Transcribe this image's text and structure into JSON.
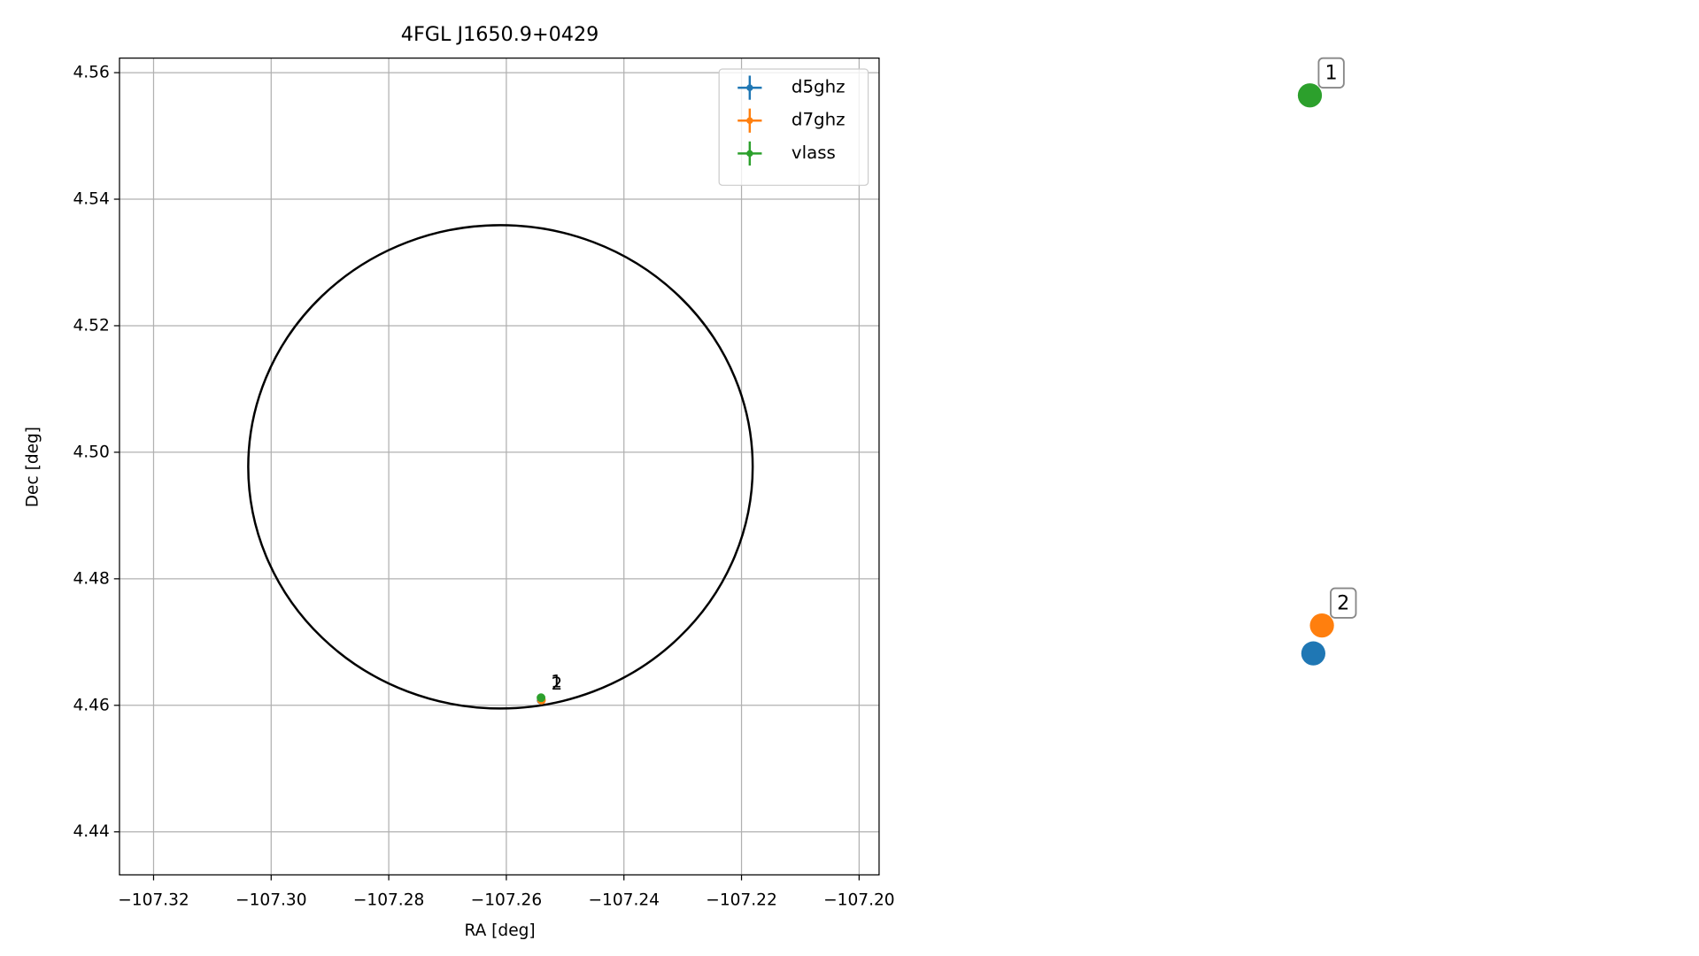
{
  "chart_data": {
    "type": "scatter",
    "title": "4FGL J1650.9+0429",
    "xlabel": "RA [deg]",
    "ylabel": "Dec [deg]",
    "xlim": [
      -107.3258,
      -107.1966
    ],
    "ylim": [
      4.4332,
      4.5623
    ],
    "xticks": [
      {
        "value": -107.32,
        "label": "−107.32"
      },
      {
        "value": -107.3,
        "label": "−107.30"
      },
      {
        "value": -107.28,
        "label": "−107.28"
      },
      {
        "value": -107.26,
        "label": "−107.26"
      },
      {
        "value": -107.24,
        "label": "−107.24"
      },
      {
        "value": -107.22,
        "label": "−107.22"
      },
      {
        "value": -107.2,
        "label": "−107.20"
      }
    ],
    "yticks": [
      4.44,
      4.46,
      4.48,
      {
        "value": 4.5,
        "label": "4.50"
      },
      4.52,
      4.54,
      4.56
    ],
    "grid": true,
    "legend": "upper right",
    "ellipse": {
      "center": [
        -107.261,
        4.4977
      ],
      "rx": 0.0429,
      "ry": 0.0382,
      "color": "#000000"
    },
    "series": [
      {
        "name": "d5ghz",
        "color": "#1f77b4",
        "x": [
          -107.25408
        ],
        "values": [
          4.4608
        ]
      },
      {
        "name": "d7ghz",
        "color": "#ff7f0e",
        "x": [
          -107.25403
        ],
        "values": [
          4.46082
        ],
        "label": "2"
      },
      {
        "name": "vlass",
        "color": "#2ca02c",
        "x": [
          -107.2541
        ],
        "values": [
          4.4612
        ],
        "label": "1"
      }
    ]
  }
}
